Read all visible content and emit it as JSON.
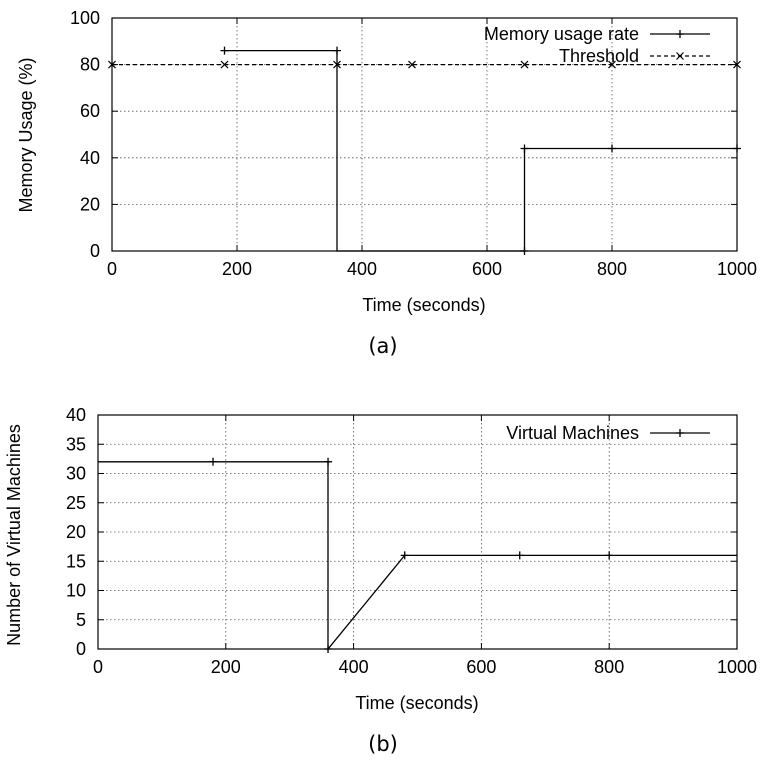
{
  "chart_data": [
    {
      "type": "line",
      "caption": "(a)",
      "xlabel": "Time (seconds)",
      "ylabel": "Memory Usage (%)",
      "xlim": [
        0,
        1000
      ],
      "ylim": [
        0,
        100
      ],
      "xticks": [
        "0",
        "200",
        "400",
        "600",
        "800",
        "1000"
      ],
      "yticks": [
        "0",
        "20",
        "40",
        "60",
        "80",
        "100"
      ],
      "grid": true,
      "legend_position": "top-right",
      "series": [
        {
          "name": "Memory usage rate",
          "style": "solid step, plus markers",
          "color": "#000000",
          "x": [
            180,
            360,
            360,
            480,
            660,
            660,
            800,
            1000
          ],
          "y": [
            86,
            86,
            0,
            0,
            0,
            44,
            44,
            44
          ],
          "marker_indices": [
            0,
            1,
            4,
            5,
            6,
            7
          ]
        },
        {
          "name": "Threshold",
          "style": "dashed, cross markers",
          "color": "#000000",
          "x": [
            0,
            180,
            360,
            480,
            660,
            800,
            1000
          ],
          "y": [
            80,
            80,
            80,
            80,
            80,
            80,
            80
          ]
        }
      ]
    },
    {
      "type": "line",
      "caption": "(b)",
      "xlabel": "Time (seconds)",
      "ylabel": "Number of Virtual Machines",
      "xlim": [
        0,
        1000
      ],
      "ylim": [
        0,
        40
      ],
      "xticks": [
        "0",
        "200",
        "400",
        "600",
        "800",
        "1000"
      ],
      "yticks": [
        "0",
        "5",
        "10",
        "15",
        "20",
        "25",
        "30",
        "35",
        "40"
      ],
      "grid": true,
      "legend_position": "top-right",
      "series": [
        {
          "name": "Virtual Machines",
          "style": "solid, plus markers",
          "color": "#000000",
          "x": [
            0,
            180,
            360,
            360,
            480,
            660,
            800,
            1000
          ],
          "y": [
            32,
            32,
            32,
            0,
            16,
            16,
            16,
            16
          ],
          "marker_indices": [
            1,
            2,
            3,
            4,
            5,
            6
          ]
        }
      ]
    }
  ]
}
